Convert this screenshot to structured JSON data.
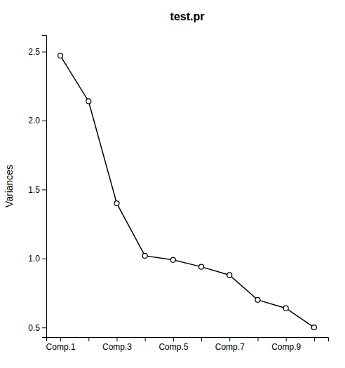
{
  "chart_data": {
    "type": "line",
    "title": "test.pr",
    "ylabel": "Variances",
    "categories": [
      "Comp.1",
      null,
      "Comp.3",
      null,
      "Comp.5",
      null,
      "Comp.7",
      null,
      "Comp.9",
      null
    ],
    "values": [
      2.47,
      2.14,
      1.4,
      1.02,
      0.99,
      0.94,
      0.88,
      0.7,
      0.64,
      0.5
    ],
    "color": "#000000",
    "marker": "circle",
    "line_style": "solid",
    "ylim": [
      0.43,
      2.62
    ],
    "yticks": [
      0.5,
      {
        "value": 1.0,
        "label": "1.0"
      },
      1.5,
      {
        "value": 2.0,
        "label": "2.0"
      },
      2.5
    ],
    "grid": false
  }
}
